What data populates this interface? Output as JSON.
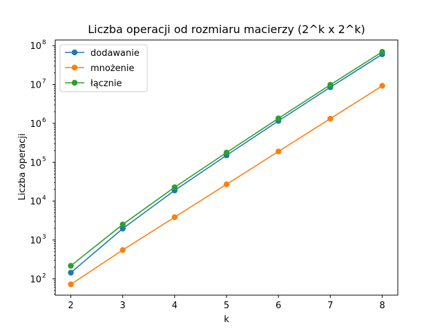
{
  "chart_data": {
    "type": "line",
    "title": "Liczba operacji od rozmiaru macierzy (2^k x 2^k)",
    "xlabel": "k",
    "ylabel": "Liczba operacji",
    "yscale": "log",
    "x": [
      2,
      3,
      4,
      5,
      6,
      7,
      8
    ],
    "xlim": [
      1.7,
      8.3
    ],
    "ylim": [
      38,
      140000000
    ],
    "xticks": [
      2,
      3,
      4,
      5,
      6,
      7,
      8
    ],
    "yticks": [
      {
        "value": 100,
        "base": "10",
        "exp": "2"
      },
      {
        "value": 1000,
        "base": "10",
        "exp": "3"
      },
      {
        "value": 10000,
        "base": "10",
        "exp": "4"
      },
      {
        "value": 100000,
        "base": "10",
        "exp": "5"
      },
      {
        "value": 1000000,
        "base": "10",
        "exp": "6"
      },
      {
        "value": 10000000,
        "base": "10",
        "exp": "7"
      },
      {
        "value": 100000000,
        "base": "10",
        "exp": "8"
      }
    ],
    "grid": false,
    "legend_position": "top-left",
    "series": [
      {
        "name": "dodawanie",
        "color": "#1f77b4",
        "marker": "circle",
        "values": [
          144,
          1960,
          18816,
          150528,
          1157184,
          8520000,
          60000000
        ]
      },
      {
        "name": "mnożenie",
        "color": "#ff7f0e",
        "marker": "circle",
        "values": [
          72,
          551,
          3857,
          27000,
          189000,
          1323000,
          9261000
        ]
      },
      {
        "name": "łącznie",
        "color": "#2ca02c",
        "marker": "circle",
        "values": [
          216,
          2511,
          22673,
          177528,
          1346184,
          9843000,
          69261000
        ]
      }
    ]
  }
}
